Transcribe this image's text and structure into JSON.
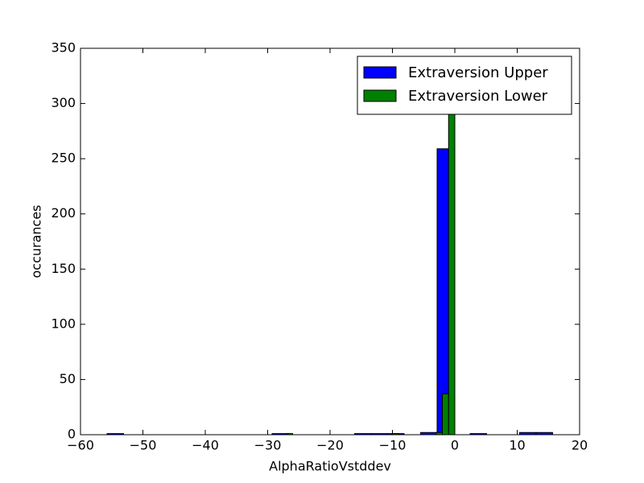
{
  "chart_data": {
    "type": "histogram",
    "xlabel": "AlphaRatioVstddev",
    "ylabel": "occurances",
    "xlim": [
      -60,
      20
    ],
    "ylim": [
      0,
      350
    ],
    "xticks": [
      {
        "value": -60,
        "label": "−60"
      },
      {
        "value": -50,
        "label": "−50"
      },
      {
        "value": -40,
        "label": "−40"
      },
      {
        "value": -30,
        "label": "−30"
      },
      {
        "value": -20,
        "label": "−20"
      },
      {
        "value": -10,
        "label": "−10"
      },
      0,
      10,
      20
    ],
    "yticks": [
      0,
      50,
      100,
      150,
      200,
      250,
      300,
      350
    ],
    "legend": "upper right",
    "series": [
      {
        "name": "Extraversion Upper",
        "color": "#0000ff",
        "bins": [
          -55.74,
          -53.1,
          -50.45,
          -47.81,
          -45.16,
          -42.52,
          -39.87,
          -37.23,
          -34.58,
          -31.94,
          -29.29,
          -26.65,
          -24.0,
          -21.36,
          -18.71,
          -16.07,
          -13.42,
          -10.78,
          -8.13,
          -5.49,
          -2.84,
          -0.2,
          2.45,
          5.09,
          7.74,
          10.38,
          13.03,
          15.67
        ],
        "values": [
          1,
          0,
          0,
          0,
          0,
          0,
          0,
          0,
          0,
          0,
          1,
          0,
          0,
          0,
          0,
          1,
          1,
          1,
          0,
          2,
          259,
          0,
          1,
          0,
          0,
          2,
          2
        ]
      },
      {
        "name": "Extraversion Lower",
        "color": "#008000",
        "bins": [
          -27,
          -26,
          -25,
          -24,
          -23,
          -22,
          -21,
          -20,
          -19,
          -18,
          -17,
          -16,
          -15,
          -14,
          -13,
          -12,
          -11,
          -10,
          -9,
          -8,
          -7,
          -6,
          -5,
          -4,
          -3,
          -2,
          -1,
          0
        ],
        "values": [
          1,
          0,
          0,
          0,
          0,
          0,
          0,
          0,
          0,
          0,
          0,
          0,
          0,
          0,
          0,
          0,
          0,
          1,
          0,
          0,
          0,
          0,
          0,
          0,
          2,
          37,
          300
        ]
      }
    ]
  }
}
